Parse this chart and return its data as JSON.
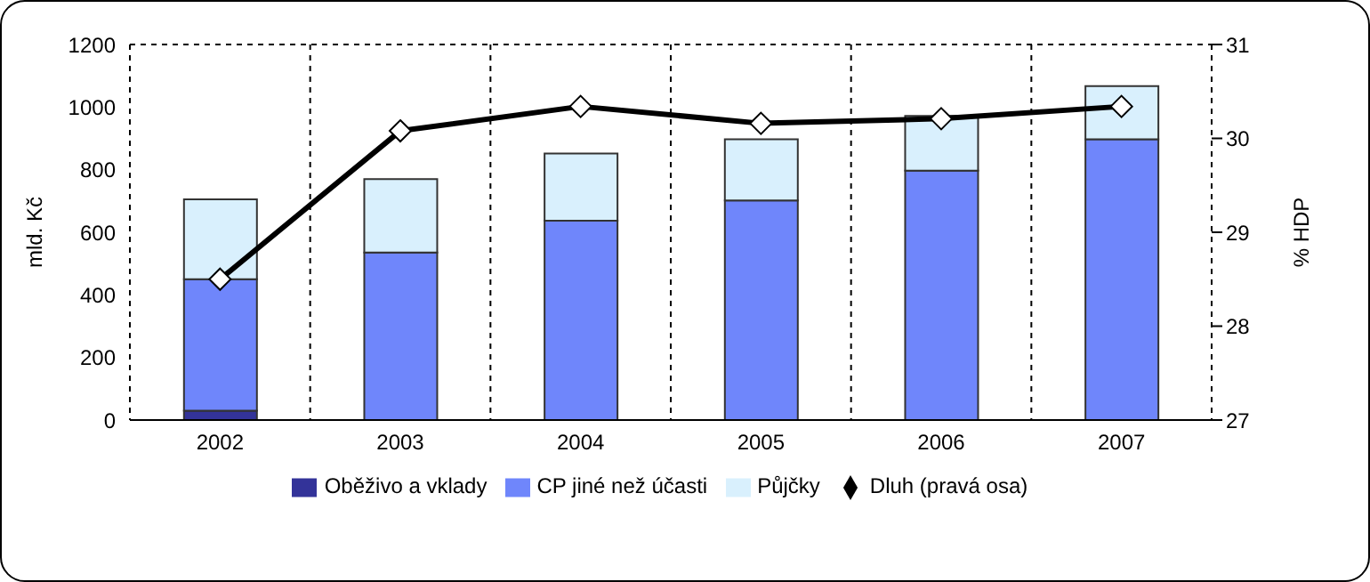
{
  "chart_data": {
    "type": "bar",
    "stacked": true,
    "categories": [
      "2002",
      "2003",
      "2004",
      "2005",
      "2006",
      "2007"
    ],
    "ylabel": "mld. Kč",
    "y2label": "% HDP",
    "ylim": [
      0,
      1200
    ],
    "yticks": [
      0,
      200,
      400,
      600,
      800,
      1000,
      1200
    ],
    "y2lim": [
      27,
      31
    ],
    "y2ticks": [
      27,
      28,
      29,
      30,
      31
    ],
    "grid": true,
    "legend": "bottom",
    "marker": "diamond",
    "line_style": "solid",
    "series": [
      {
        "name": "Oběživo a vklady",
        "color": "#333399",
        "values": [
          30,
          null,
          null,
          null,
          null,
          null
        ]
      },
      {
        "name": "CP jiné než účasti",
        "color": "#6f86fb",
        "values": [
          420,
          535,
          637,
          702,
          797,
          897
        ]
      },
      {
        "name": "Půjčky",
        "color": "#d9f0fd",
        "values": [
          255,
          235,
          215,
          195,
          175,
          170
        ]
      },
      {
        "name": "Dluh (pravá osa)",
        "type": "line",
        "axis": "y2",
        "color": "#000000",
        "values": [
          28.5,
          30.08,
          30.34,
          30.16,
          30.21,
          30.34
        ]
      }
    ]
  }
}
